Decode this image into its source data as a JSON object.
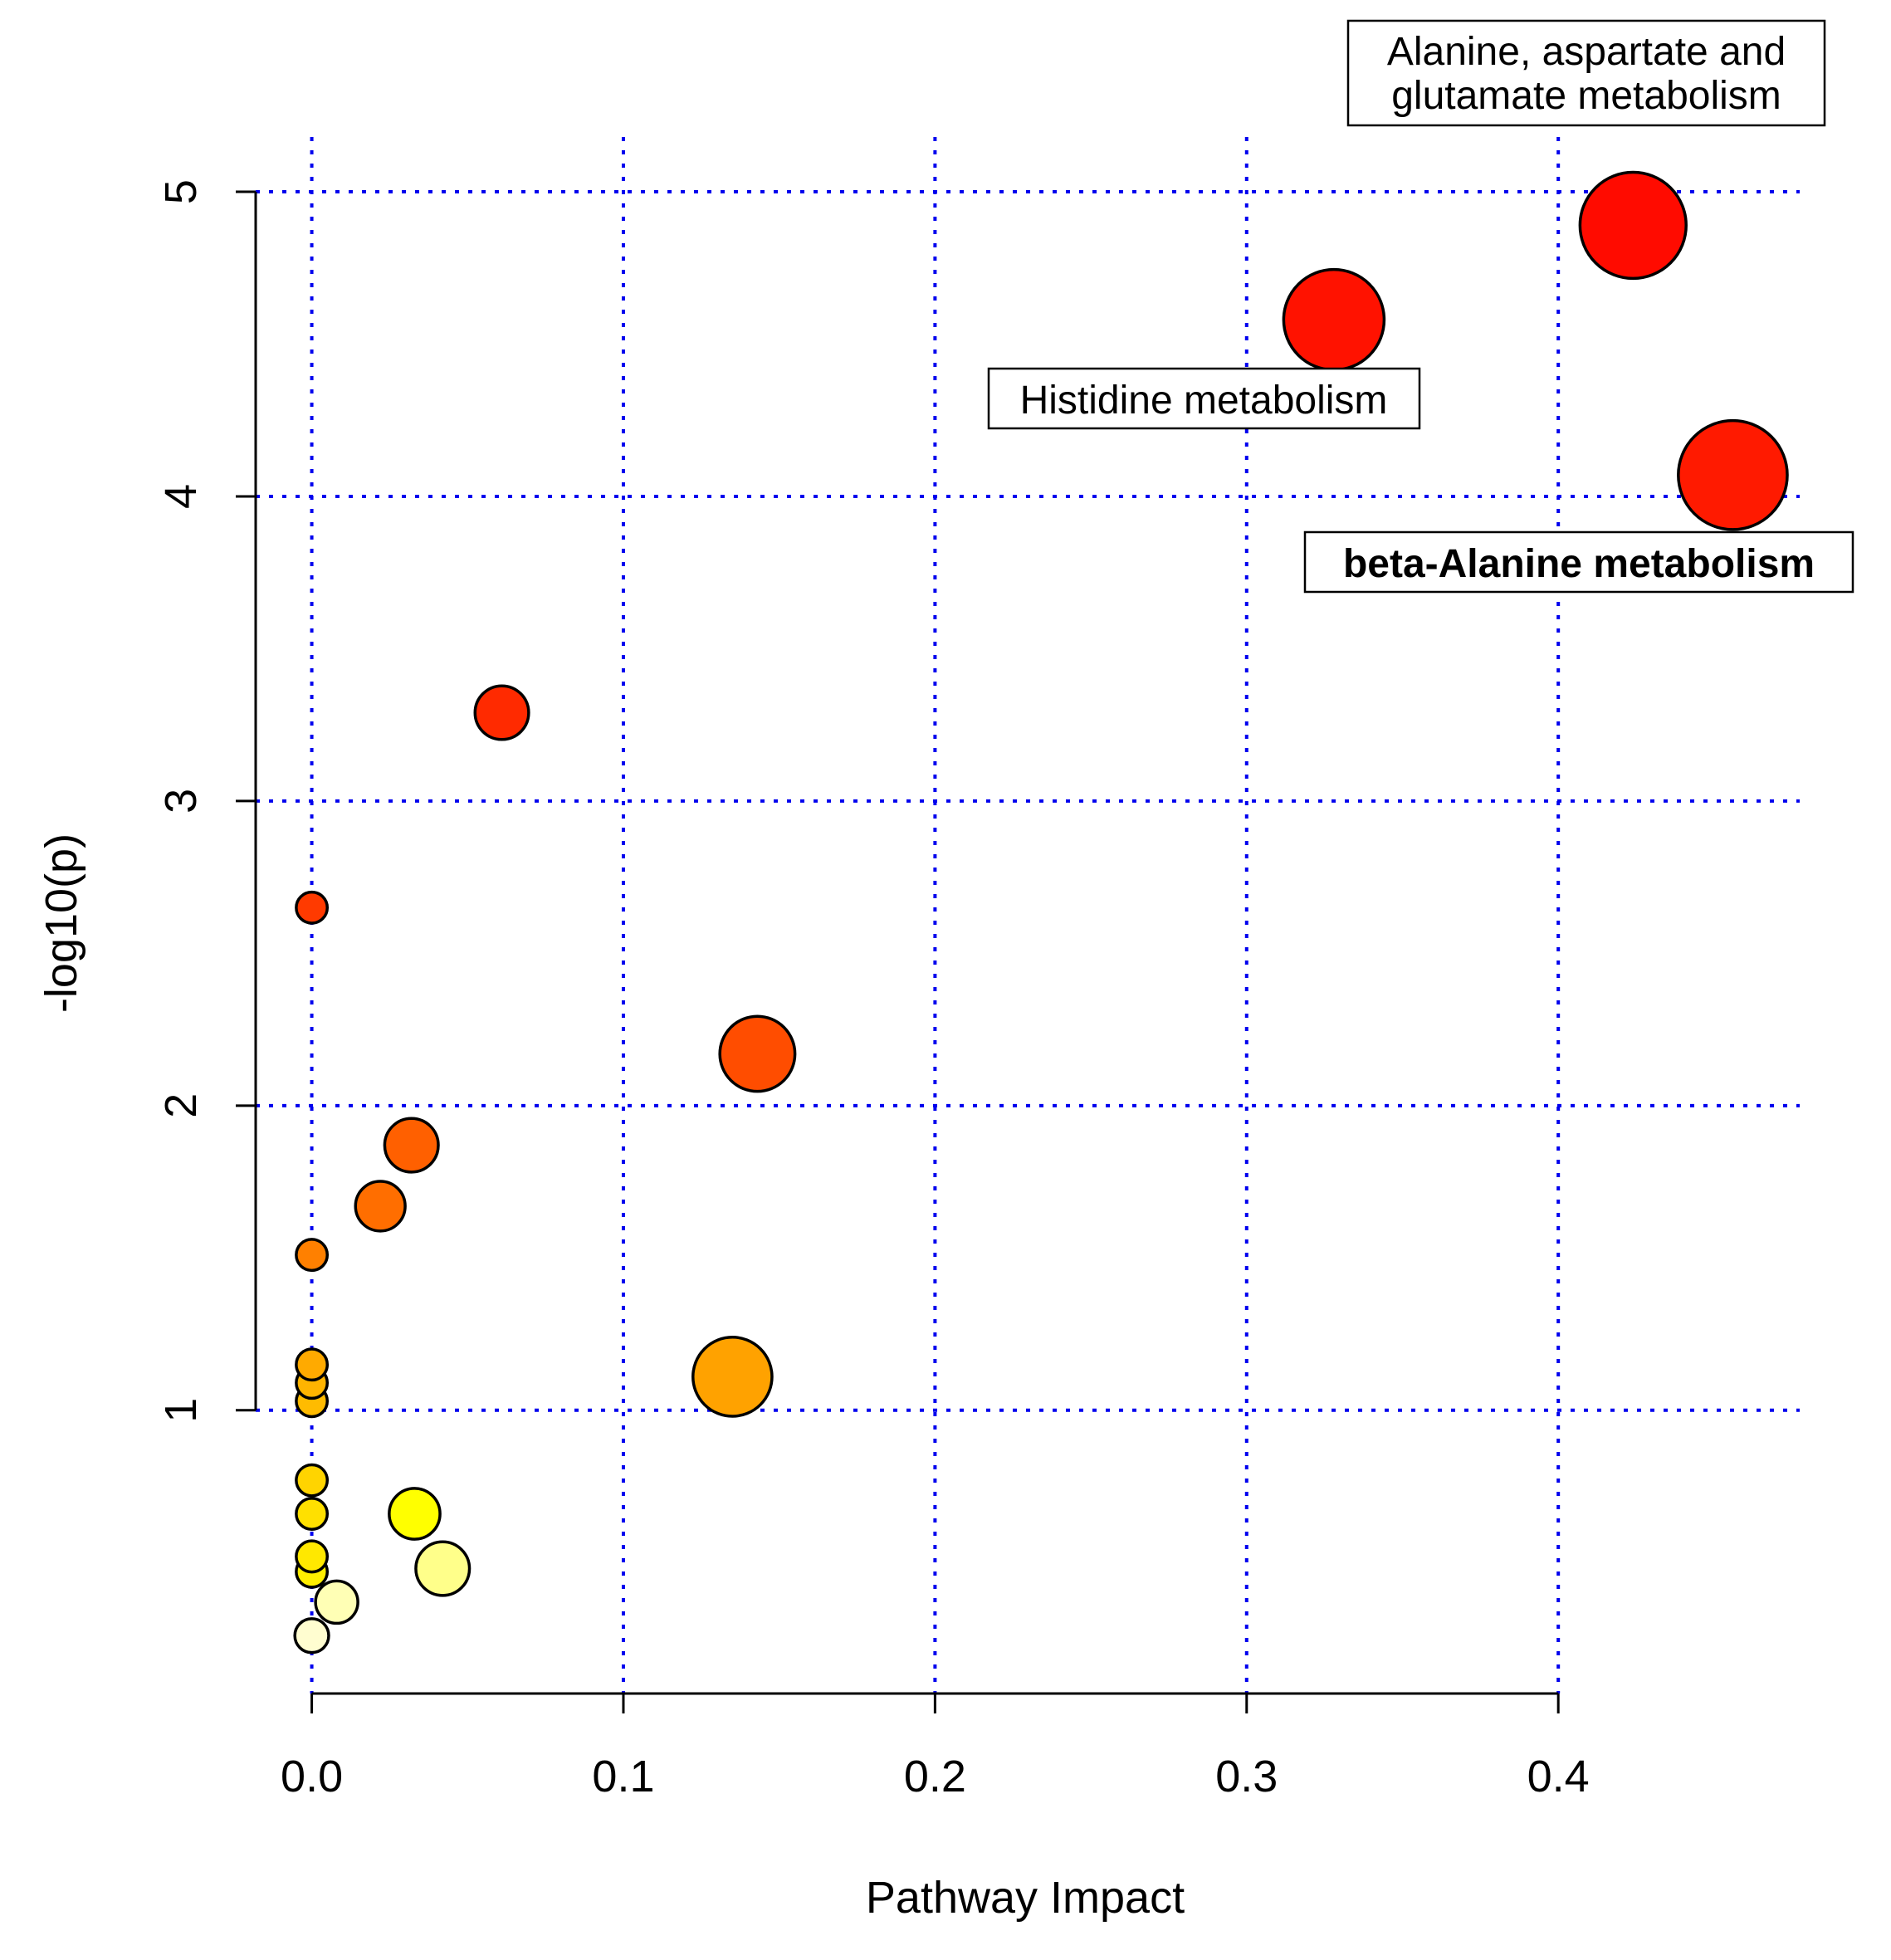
{
  "chart_data": {
    "type": "scatter",
    "title": "",
    "xlabel": "Pathway Impact",
    "ylabel": "-log10(p)",
    "xlim": [
      -0.018,
      0.478
    ],
    "ylim": [
      0.07,
      5.18
    ],
    "x_ticks": [
      0.0,
      0.1,
      0.2,
      0.3,
      0.4
    ],
    "x_tick_labels": [
      "0.0",
      "0.1",
      "0.2",
      "0.3",
      "0.4"
    ],
    "y_ticks": [
      1,
      2,
      3,
      4,
      5
    ],
    "y_tick_labels": [
      "1",
      "2",
      "3",
      "4",
      "5"
    ],
    "grid": true,
    "grid_color": "#0000ee",
    "points": [
      {
        "x": 0.0,
        "y": 0.26,
        "size": 0.6,
        "color": "#fffdd0"
      },
      {
        "x": 0.008,
        "y": 0.37,
        "size": 0.75,
        "color": "#ffffb5"
      },
      {
        "x": 0.042,
        "y": 0.48,
        "size": 0.95,
        "color": "#ffff8a"
      },
      {
        "x": 0.0,
        "y": 0.47,
        "size": 0.55,
        "color": "#ffee00"
      },
      {
        "x": 0.0,
        "y": 0.52,
        "size": 0.55,
        "color": "#ffe800"
      },
      {
        "x": 0.0,
        "y": 0.66,
        "size": 0.55,
        "color": "#ffe000"
      },
      {
        "x": 0.033,
        "y": 0.66,
        "size": 0.9,
        "color": "#ffff00"
      },
      {
        "x": 0.0,
        "y": 0.77,
        "size": 0.55,
        "color": "#ffd400"
      },
      {
        "x": 0.0,
        "y": 1.03,
        "size": 0.55,
        "color": "#ffbb00"
      },
      {
        "x": 0.0,
        "y": 1.09,
        "size": 0.55,
        "color": "#ffb400"
      },
      {
        "x": 0.0,
        "y": 1.15,
        "size": 0.55,
        "color": "#ffaa00"
      },
      {
        "x": 0.135,
        "y": 1.11,
        "size": 1.4,
        "color": "#ffa200"
      },
      {
        "x": 0.0,
        "y": 1.51,
        "size": 0.55,
        "color": "#ff8000"
      },
      {
        "x": 0.022,
        "y": 1.67,
        "size": 0.88,
        "color": "#ff6e00"
      },
      {
        "x": 0.032,
        "y": 1.87,
        "size": 0.95,
        "color": "#ff6000"
      },
      {
        "x": 0.143,
        "y": 2.17,
        "size": 1.33,
        "color": "#ff4d00"
      },
      {
        "x": 0.0,
        "y": 2.65,
        "size": 0.55,
        "color": "#ff3a00"
      },
      {
        "x": 0.061,
        "y": 3.29,
        "size": 0.95,
        "color": "#ff2a00"
      },
      {
        "x": 0.328,
        "y": 4.58,
        "size": 1.78,
        "color": "#ff1200"
      },
      {
        "x": 0.424,
        "y": 4.89,
        "size": 1.88,
        "color": "#ff0b00"
      },
      {
        "x": 0.456,
        "y": 4.07,
        "size": 1.93,
        "color": "#ff1a00"
      }
    ],
    "annotations": [
      {
        "lines": [
          "Alanine, aspartate and",
          "glutamate metabolism"
        ],
        "bold": false
      },
      {
        "lines": [
          "Histidine metabolism"
        ],
        "bold": false
      },
      {
        "lines": [
          "beta-Alanine metabolism"
        ],
        "bold": true
      }
    ]
  }
}
